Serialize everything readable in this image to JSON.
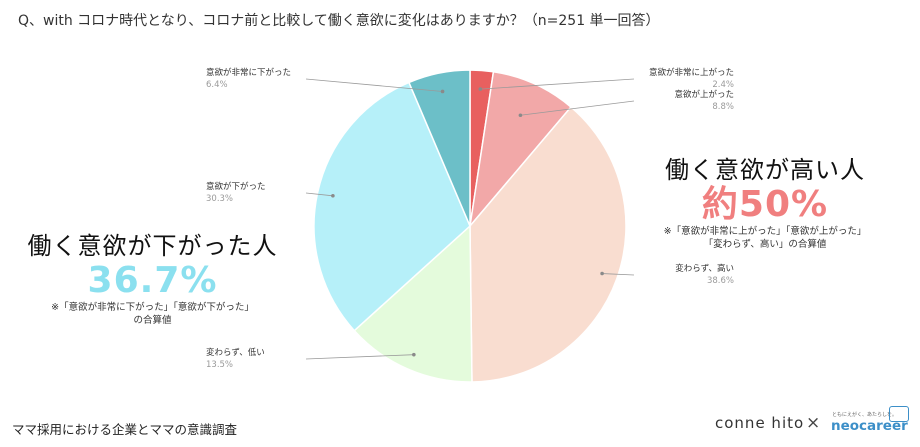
{
  "question": "Q、with コロナ時代となり、コロナ前と比較して働く意欲に変化はありますか？（n=251 単一回答）",
  "chart_data": {
    "type": "pie",
    "start_angle_deg": 0,
    "direction": "clockwise",
    "slices": [
      {
        "label": "意欲が非常に上がった",
        "pct_text": "2.4%",
        "value": 2.4,
        "color": "#e8605f"
      },
      {
        "label": "意欲が上がった",
        "pct_text": "8.8%",
        "value": 8.8,
        "color": "#f2a8a8"
      },
      {
        "label": "変わらず、高い",
        "pct_text": "38.6%",
        "value": 38.6,
        "color": "#f9ddd0"
      },
      {
        "label": "変わらず、低い",
        "pct_text": "13.5%",
        "value": 13.5,
        "color": "#e4fbdc"
      },
      {
        "label": "意欲が下がった",
        "pct_text": "30.3%",
        "value": 30.3,
        "color": "#b6f0f9"
      },
      {
        "label": "意欲が非常に下がった",
        "pct_text": "6.4%",
        "value": 6.4,
        "color": "#6cbfc8"
      }
    ]
  },
  "callout_up": {
    "head": "働く意欲が高い人",
    "big": "約50%",
    "note1": "※「意欲が非常に上がった」「意欲が上がった」",
    "note2": "「変わらず、高い」の合算値"
  },
  "callout_down": {
    "head": "働く意欲が下がった人",
    "big": "36.7%",
    "note1": "※「意欲が非常に下がった」「意欲が下がった」",
    "note2": "の合算値"
  },
  "footer": "ママ採用における企業とママの意識調査",
  "brands": {
    "connehito": "conne hito",
    "separator": "×",
    "neocareer": "neocareer",
    "neocareer_tagline": "ともにえがく、あたらしを。"
  }
}
